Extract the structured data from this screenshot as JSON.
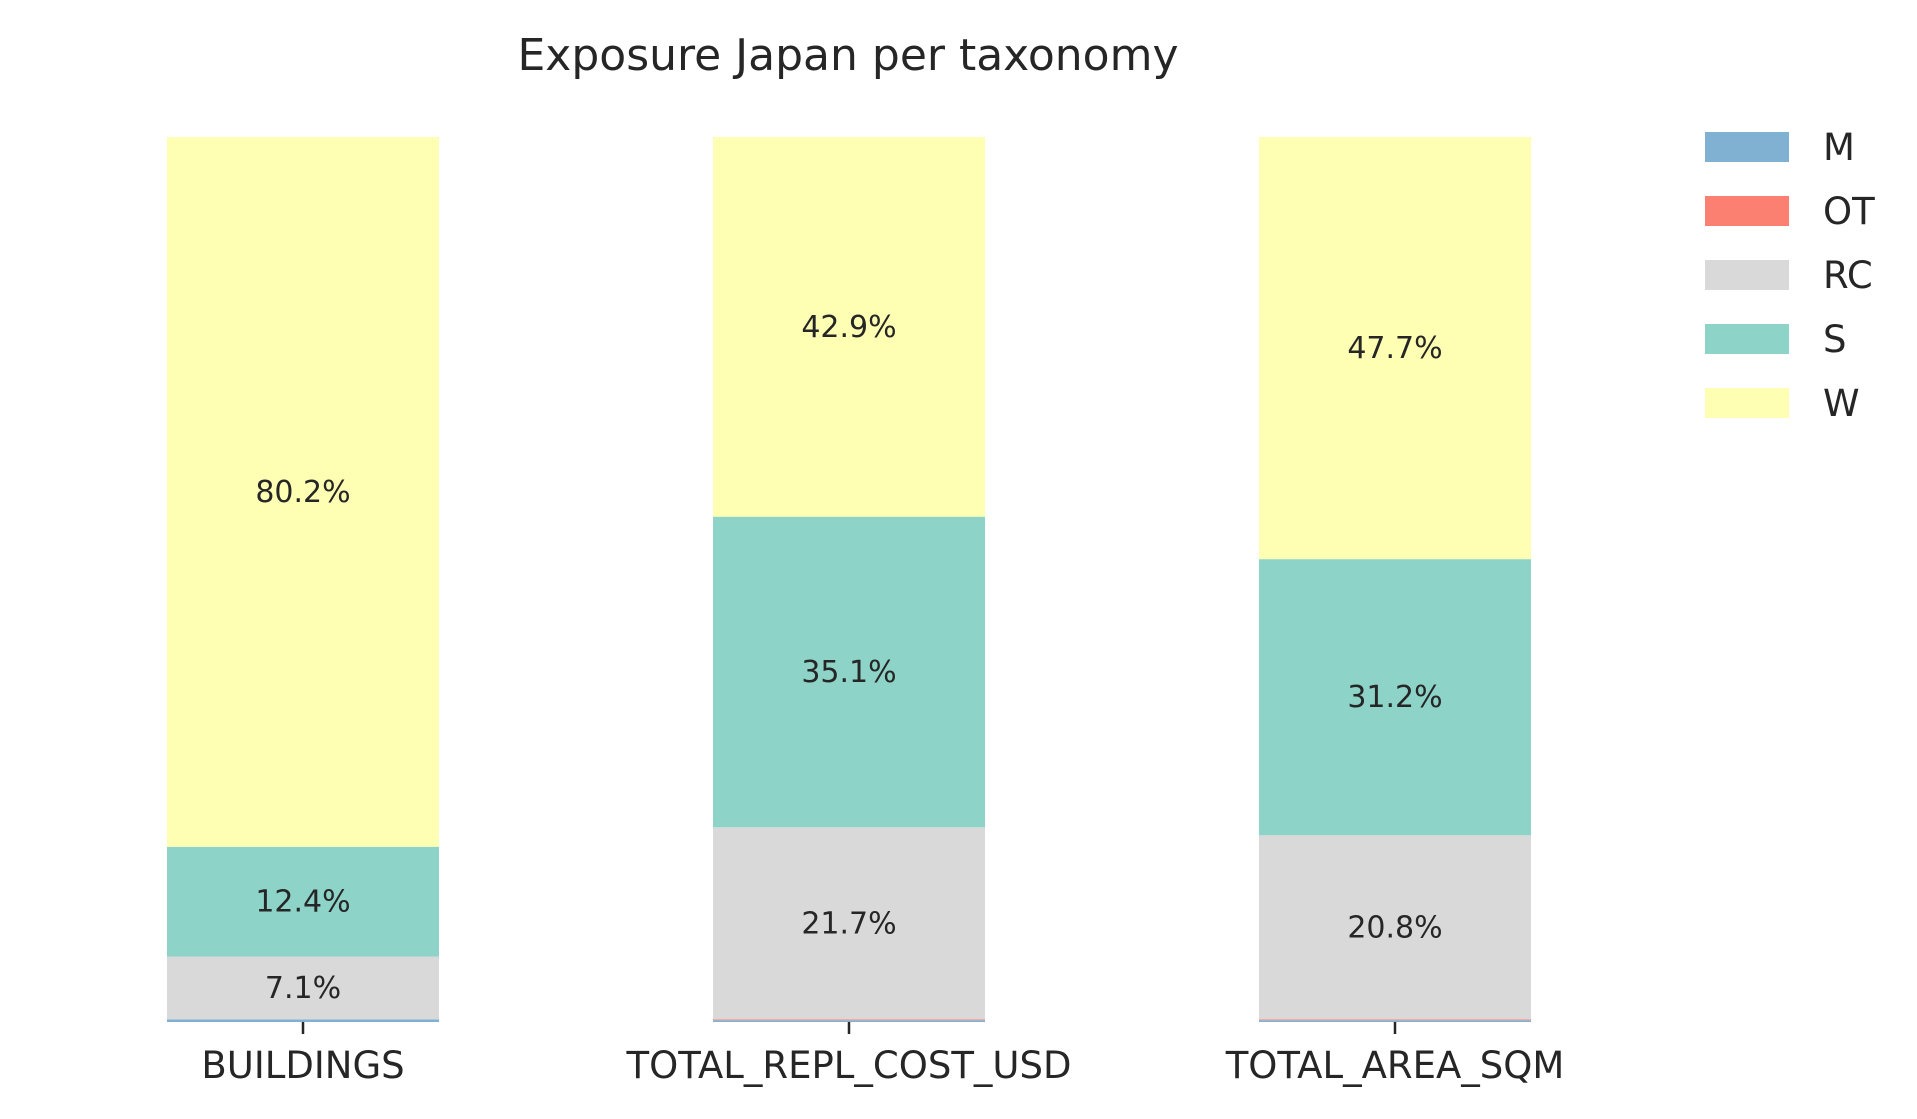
{
  "chart_data": {
    "type": "bar",
    "stacked": true,
    "title": "Exposure Japan per taxonomy",
    "xlabel": "",
    "ylabel": "",
    "categories": [
      "BUILDINGS",
      "TOTAL_REPL_COST_USD",
      "TOTAL_AREA_SQM"
    ],
    "ylim": [
      0,
      100
    ],
    "grid": false,
    "legend_position": "top-right",
    "series": [
      {
        "name": "M",
        "color": "#80b1d3",
        "values": [
          0.3,
          0.2,
          0.2
        ],
        "labels": [
          "",
          "",
          ""
        ]
      },
      {
        "name": "OT",
        "color": "#fb8072",
        "values": [
          0.0,
          0.1,
          0.1
        ],
        "labels": [
          "",
          "",
          ""
        ]
      },
      {
        "name": "RC",
        "color": "#d9d9d9",
        "values": [
          7.1,
          21.7,
          20.8
        ],
        "labels": [
          "7.1%",
          "21.7%",
          "20.8%"
        ]
      },
      {
        "name": "S",
        "color": "#8dd3c7",
        "values": [
          12.4,
          35.1,
          31.2
        ],
        "labels": [
          "12.4%",
          "35.1%",
          "31.2%"
        ]
      },
      {
        "name": "W",
        "color": "#ffffb3",
        "values": [
          80.2,
          42.9,
          47.7
        ],
        "labels": [
          "80.2%",
          "42.9%",
          "47.7%"
        ]
      }
    ]
  }
}
